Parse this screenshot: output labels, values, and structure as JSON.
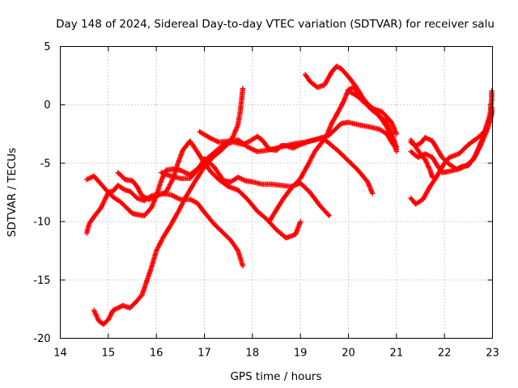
{
  "chart_data": {
    "type": "scatter",
    "title": "Day 148 of 2024, Sidereal Day-to-day VTEC variation (SDTVAR) for receiver salu",
    "xlabel": "GPS time / hours",
    "ylabel": "SDTVAR / TECUs",
    "xlim": [
      14,
      23
    ],
    "ylim": [
      -20,
      5
    ],
    "xticks": [
      "14",
      "15",
      "16",
      "17",
      "18",
      "19",
      "20",
      "21",
      "22",
      "23"
    ],
    "yticks": [
      "-20",
      "-15",
      "-10",
      "-5",
      "0",
      "5"
    ],
    "grid": true,
    "marker": "+",
    "color": "#ff0000",
    "series": [
      {
        "name": "track-1",
        "points": [
          [
            14.55,
            -6.4
          ],
          [
            14.7,
            -6.1
          ],
          [
            14.85,
            -6.8
          ],
          [
            15.0,
            -7.5
          ],
          [
            15.1,
            -7.9
          ],
          [
            15.25,
            -8.3
          ],
          [
            15.4,
            -8.9
          ],
          [
            15.5,
            -9.3
          ],
          [
            15.6,
            -9.4
          ],
          [
            15.75,
            -9.5
          ],
          [
            15.9,
            -8.8
          ],
          [
            16.0,
            -7.8
          ],
          [
            16.1,
            -6.5
          ],
          [
            16.2,
            -5.6
          ],
          [
            16.35,
            -5.5
          ],
          [
            16.5,
            -5.6
          ],
          [
            16.7,
            -6.0
          ],
          [
            16.85,
            -5.5
          ],
          [
            17.0,
            -4.8
          ],
          [
            17.2,
            -4.1
          ],
          [
            17.4,
            -3.4
          ],
          [
            17.6,
            -3.2
          ],
          [
            17.8,
            -3.4
          ],
          [
            17.95,
            -3.1
          ],
          [
            18.1,
            -2.7
          ],
          [
            18.2,
            -3.0
          ],
          [
            18.35,
            -3.8
          ],
          [
            18.5,
            -3.9
          ],
          [
            18.6,
            -3.5
          ],
          [
            18.7,
            -3.5
          ],
          [
            18.85,
            -3.7
          ],
          [
            19.0,
            -3.4
          ],
          [
            19.2,
            -3.1
          ],
          [
            19.4,
            -2.9
          ],
          [
            19.6,
            -2.6
          ],
          [
            19.75,
            -2.0
          ],
          [
            19.85,
            -1.6
          ],
          [
            20.0,
            -1.5
          ],
          [
            20.2,
            -1.7
          ],
          [
            20.45,
            -1.9
          ],
          [
            20.65,
            -2.1
          ],
          [
            20.8,
            -2.5
          ],
          [
            20.9,
            -3.2
          ],
          [
            21.0,
            -3.8
          ]
        ]
      },
      {
        "name": "track-2",
        "points": [
          [
            14.7,
            -17.6
          ],
          [
            14.8,
            -18.5
          ],
          [
            14.9,
            -18.8
          ],
          [
            15.0,
            -18.4
          ],
          [
            15.1,
            -17.6
          ],
          [
            15.3,
            -17.2
          ],
          [
            15.45,
            -17.4
          ],
          [
            15.55,
            -17.0
          ],
          [
            15.7,
            -16.3
          ],
          [
            15.8,
            -15.1
          ],
          [
            15.9,
            -13.9
          ],
          [
            16.0,
            -12.5
          ],
          [
            16.15,
            -11.3
          ],
          [
            16.3,
            -10.3
          ],
          [
            16.45,
            -9.2
          ],
          [
            16.6,
            -8.0
          ],
          [
            16.8,
            -6.6
          ],
          [
            17.0,
            -5.3
          ],
          [
            17.2,
            -4.4
          ],
          [
            17.35,
            -3.9
          ],
          [
            17.5,
            -3.3
          ],
          [
            17.6,
            -2.7
          ],
          [
            17.7,
            -1.7
          ],
          [
            17.75,
            -0.5
          ],
          [
            17.8,
            1.4
          ]
        ]
      },
      {
        "name": "track-3",
        "points": [
          [
            14.55,
            -11.0
          ],
          [
            14.6,
            -10.2
          ],
          [
            14.7,
            -9.6
          ],
          [
            14.85,
            -8.8
          ],
          [
            15.0,
            -7.5
          ],
          [
            15.1,
            -7.4
          ],
          [
            15.2,
            -6.9
          ],
          [
            15.35,
            -7.3
          ],
          [
            15.45,
            -7.4
          ],
          [
            15.6,
            -8.0
          ],
          [
            15.75,
            -8.2
          ],
          [
            15.9,
            -7.8
          ],
          [
            16.1,
            -7.6
          ],
          [
            16.3,
            -7.7
          ],
          [
            16.5,
            -8.1
          ],
          [
            16.7,
            -8.1
          ],
          [
            16.85,
            -8.4
          ],
          [
            17.0,
            -9.2
          ],
          [
            17.2,
            -10.2
          ],
          [
            17.4,
            -11.0
          ],
          [
            17.55,
            -11.6
          ],
          [
            17.7,
            -12.5
          ],
          [
            17.8,
            -13.8
          ]
        ]
      },
      {
        "name": "track-4",
        "points": [
          [
            15.2,
            -5.8
          ],
          [
            15.35,
            -6.4
          ],
          [
            15.5,
            -6.5
          ],
          [
            15.6,
            -7.0
          ],
          [
            15.7,
            -7.8
          ],
          [
            15.85,
            -8.1
          ],
          [
            16.0,
            -7.8
          ],
          [
            16.2,
            -7.5
          ],
          [
            16.35,
            -6.3
          ],
          [
            16.45,
            -5.0
          ],
          [
            16.55,
            -3.9
          ],
          [
            16.7,
            -3.1
          ],
          [
            16.85,
            -4.0
          ],
          [
            17.0,
            -5.0
          ],
          [
            17.15,
            -5.8
          ],
          [
            17.3,
            -6.4
          ],
          [
            17.5,
            -7.0
          ],
          [
            17.7,
            -7.3
          ],
          [
            17.9,
            -8.1
          ],
          [
            18.1,
            -9.1
          ],
          [
            18.3,
            -9.8
          ],
          [
            18.5,
            -10.7
          ],
          [
            18.7,
            -11.4
          ],
          [
            18.9,
            -11.1
          ],
          [
            19.0,
            -10.0
          ]
        ]
      },
      {
        "name": "track-5",
        "points": [
          [
            16.1,
            -5.8
          ],
          [
            16.3,
            -6.1
          ],
          [
            16.5,
            -6.3
          ],
          [
            16.7,
            -6.3
          ],
          [
            16.9,
            -5.4
          ],
          [
            17.0,
            -4.6
          ],
          [
            17.2,
            -5.3
          ],
          [
            17.4,
            -6.5
          ],
          [
            17.55,
            -6.6
          ],
          [
            17.7,
            -6.2
          ],
          [
            17.85,
            -6.5
          ],
          [
            18.0,
            -6.6
          ],
          [
            18.2,
            -6.8
          ],
          [
            18.4,
            -6.8
          ],
          [
            18.6,
            -6.9
          ],
          [
            18.8,
            -7.0
          ],
          [
            19.0,
            -6.7
          ],
          [
            19.2,
            -7.5
          ],
          [
            19.4,
            -8.6
          ],
          [
            19.6,
            -9.5
          ]
        ]
      },
      {
        "name": "track-6",
        "points": [
          [
            18.35,
            -10.0
          ],
          [
            18.5,
            -9.0
          ],
          [
            18.65,
            -8.0
          ],
          [
            18.8,
            -7.2
          ],
          [
            19.0,
            -6.3
          ],
          [
            19.15,
            -5.2
          ],
          [
            19.3,
            -4.0
          ],
          [
            19.45,
            -3.2
          ],
          [
            19.55,
            -2.6
          ],
          [
            19.65,
            -1.6
          ],
          [
            19.8,
            -0.5
          ],
          [
            19.9,
            0.3
          ],
          [
            20.0,
            1.3
          ],
          [
            20.1,
            1.5
          ],
          [
            20.3,
            0.5
          ],
          [
            20.5,
            -0.3
          ],
          [
            20.7,
            -0.6
          ],
          [
            20.9,
            -1.5
          ],
          [
            21.0,
            -2.5
          ]
        ]
      },
      {
        "name": "track-7",
        "points": [
          [
            16.9,
            -2.3
          ],
          [
            17.1,
            -2.8
          ],
          [
            17.3,
            -3.2
          ],
          [
            17.5,
            -3.1
          ],
          [
            17.7,
            -3.0
          ],
          [
            17.9,
            -3.6
          ],
          [
            18.1,
            -4.0
          ],
          [
            18.3,
            -3.9
          ],
          [
            18.5,
            -3.7
          ],
          [
            18.7,
            -3.5
          ],
          [
            18.9,
            -3.3
          ],
          [
            19.1,
            -3.2
          ],
          [
            19.3,
            -3.0
          ],
          [
            19.45,
            -2.8
          ],
          [
            19.6,
            -3.3
          ],
          [
            19.8,
            -4.0
          ],
          [
            20.0,
            -4.8
          ],
          [
            20.2,
            -5.6
          ],
          [
            20.4,
            -6.6
          ],
          [
            20.5,
            -7.6
          ]
        ]
      },
      {
        "name": "track-8",
        "points": [
          [
            19.1,
            2.6
          ],
          [
            19.2,
            2.0
          ],
          [
            19.35,
            1.5
          ],
          [
            19.5,
            1.7
          ],
          [
            19.65,
            2.8
          ],
          [
            19.75,
            3.3
          ],
          [
            19.85,
            3.1
          ],
          [
            20.0,
            2.4
          ],
          [
            20.15,
            1.6
          ],
          [
            20.3,
            0.6
          ],
          [
            20.45,
            -0.3
          ],
          [
            20.6,
            -0.8
          ],
          [
            20.8,
            -1.5
          ],
          [
            20.95,
            -3.0
          ],
          [
            21.0,
            -4.0
          ]
        ]
      },
      {
        "name": "track-9",
        "points": [
          [
            20.0,
            1.2
          ],
          [
            20.2,
            0.7
          ],
          [
            20.35,
            0.1
          ],
          [
            20.5,
            -0.3
          ],
          [
            20.65,
            -1.0
          ],
          [
            20.8,
            -1.9
          ],
          [
            20.9,
            -2.8
          ],
          [
            21.0,
            -3.6
          ]
        ]
      },
      {
        "name": "track-10",
        "points": [
          [
            21.3,
            -8.0
          ],
          [
            21.4,
            -8.5
          ],
          [
            21.55,
            -8.1
          ],
          [
            21.7,
            -7.0
          ],
          [
            21.8,
            -6.4
          ],
          [
            21.9,
            -5.7
          ],
          [
            22.0,
            -5.0
          ],
          [
            22.1,
            -4.5
          ],
          [
            22.3,
            -4.2
          ],
          [
            22.5,
            -3.4
          ],
          [
            22.7,
            -2.8
          ],
          [
            22.85,
            -2.2
          ],
          [
            22.95,
            -1.2
          ],
          [
            23.0,
            -0.2
          ]
        ]
      },
      {
        "name": "track-11",
        "points": [
          [
            21.3,
            -3.2
          ],
          [
            21.4,
            -3.5
          ],
          [
            21.5,
            -3.3
          ],
          [
            21.6,
            -2.8
          ],
          [
            21.75,
            -3.1
          ],
          [
            21.85,
            -3.8
          ],
          [
            21.95,
            -4.5
          ],
          [
            22.1,
            -5.1
          ],
          [
            22.25,
            -5.5
          ],
          [
            22.35,
            -5.3
          ],
          [
            22.5,
            -5.2
          ],
          [
            22.65,
            -4.3
          ],
          [
            22.8,
            -2.8
          ],
          [
            22.95,
            -0.8
          ],
          [
            23.0,
            1.2
          ]
        ]
      },
      {
        "name": "track-12",
        "points": [
          [
            21.3,
            -4.0
          ],
          [
            21.45,
            -4.5
          ],
          [
            21.6,
            -4.2
          ],
          [
            21.75,
            -4.5
          ],
          [
            21.85,
            -5.2
          ],
          [
            21.95,
            -5.8
          ],
          [
            22.1,
            -5.7
          ],
          [
            22.3,
            -5.5
          ],
          [
            22.45,
            -5.2
          ],
          [
            22.6,
            -4.7
          ],
          [
            22.75,
            -3.5
          ],
          [
            22.9,
            -2.0
          ],
          [
            23.0,
            -0.6
          ]
        ]
      },
      {
        "name": "track-13",
        "points": [
          [
            21.3,
            -3.0
          ],
          [
            21.4,
            -3.6
          ],
          [
            21.5,
            -4.2
          ],
          [
            21.6,
            -4.7
          ],
          [
            21.7,
            -5.6
          ],
          [
            21.75,
            -6.2
          ]
        ]
      }
    ]
  }
}
